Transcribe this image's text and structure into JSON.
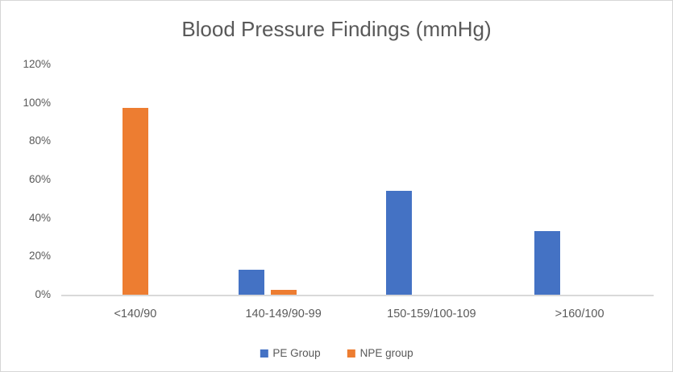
{
  "chart_data": {
    "type": "bar",
    "title": "Blood Pressure Findings (mmHg)",
    "categories": [
      "<140/90",
      "140-149/90-99",
      "150-159/100-109",
      ">160/100"
    ],
    "series": [
      {
        "name": "PE Group",
        "color": "#4472C4",
        "values": [
          0,
          13,
          54,
          33
        ]
      },
      {
        "name": "NPE group",
        "color": "#ED7D31",
        "values": [
          97.5,
          2.5,
          0,
          0
        ]
      }
    ],
    "xlabel": "",
    "ylabel": "",
    "ylim": [
      0,
      120
    ],
    "ytick_step": 20,
    "yticks": [
      "0%",
      "20%",
      "40%",
      "60%",
      "80%",
      "100%",
      "120%"
    ],
    "grid": false,
    "legend_position": "bottom"
  },
  "colors": {
    "text": "#595959",
    "axis_line": "#D9D9D9",
    "border": "#D6D6D6",
    "background": "#FFFFFF",
    "pe_blue": "#4472C4",
    "npe_orange": "#ED7D31"
  }
}
